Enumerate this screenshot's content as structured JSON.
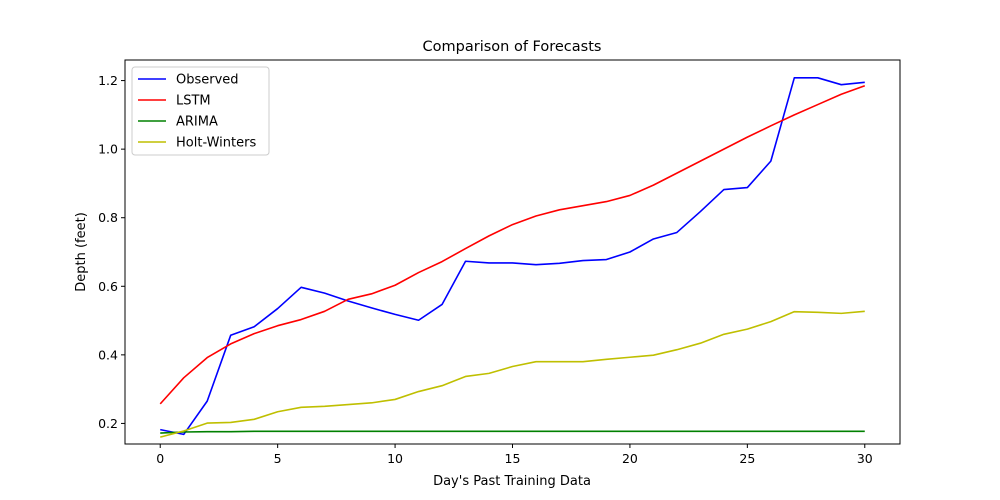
{
  "chart_data": {
    "type": "line",
    "title": "Comparison of Forecasts",
    "xlabel": "Day's Past Training Data",
    "ylabel": "Depth (feet)",
    "xlim": [
      -1.5,
      31.5
    ],
    "ylim": [
      0.14,
      1.26
    ],
    "x_ticks": [
      0,
      5,
      10,
      15,
      20,
      25,
      30
    ],
    "y_ticks": [
      0.2,
      0.4,
      0.6,
      0.8,
      1.0,
      1.2
    ],
    "x_tick_labels": [
      "0",
      "5",
      "10",
      "15",
      "20",
      "25",
      "30"
    ],
    "y_tick_labels": [
      "0.2",
      "0.4",
      "0.6",
      "0.8",
      "1.0",
      "1.2"
    ],
    "grid": false,
    "legend_position": "top-left",
    "x": [
      0,
      1,
      2,
      3,
      4,
      5,
      6,
      7,
      8,
      9,
      10,
      11,
      12,
      13,
      14,
      15,
      16,
      17,
      18,
      19,
      20,
      21,
      22,
      23,
      24,
      25,
      26,
      27,
      28,
      29,
      30
    ],
    "series": [
      {
        "name": "Observed",
        "color": "#0000ff",
        "values": [
          0.182,
          0.168,
          0.265,
          0.457,
          0.482,
          0.535,
          0.597,
          0.58,
          0.557,
          0.537,
          0.518,
          0.501,
          0.547,
          0.673,
          0.668,
          0.668,
          0.663,
          0.667,
          0.675,
          0.678,
          0.7,
          0.738,
          0.757,
          0.818,
          0.882,
          0.888,
          0.965,
          1.208,
          1.208,
          1.188,
          1.195
        ]
      },
      {
        "name": "LSTM",
        "color": "#ff0000",
        "values": [
          0.257,
          0.333,
          0.392,
          0.432,
          0.462,
          0.485,
          0.503,
          0.527,
          0.562,
          0.578,
          0.603,
          0.64,
          0.672,
          0.71,
          0.747,
          0.78,
          0.805,
          0.823,
          0.835,
          0.847,
          0.865,
          0.895,
          0.93,
          0.965,
          1.0,
          1.035,
          1.068,
          1.1,
          1.13,
          1.16,
          1.185
        ]
      },
      {
        "name": "ARIMA",
        "color": "#008000",
        "values": [
          0.172,
          0.175,
          0.176,
          0.176,
          0.177,
          0.177,
          0.177,
          0.177,
          0.177,
          0.177,
          0.177,
          0.177,
          0.177,
          0.177,
          0.177,
          0.177,
          0.177,
          0.177,
          0.177,
          0.177,
          0.177,
          0.177,
          0.177,
          0.177,
          0.177,
          0.177,
          0.177,
          0.177,
          0.177,
          0.177,
          0.177
        ]
      },
      {
        "name": "Holt-Winters",
        "color": "#bfbf00",
        "values": [
          0.16,
          0.178,
          0.201,
          0.203,
          0.212,
          0.234,
          0.247,
          0.25,
          0.255,
          0.26,
          0.27,
          0.293,
          0.31,
          0.337,
          0.346,
          0.366,
          0.38,
          0.38,
          0.38,
          0.387,
          0.393,
          0.399,
          0.415,
          0.434,
          0.46,
          0.475,
          0.497,
          0.526,
          0.524,
          0.521,
          0.527
        ]
      }
    ]
  }
}
